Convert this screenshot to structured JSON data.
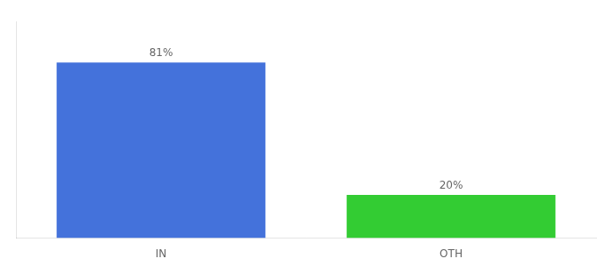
{
  "chart_data": {
    "type": "bar",
    "categories": [
      "IN",
      "OTH"
    ],
    "values": [
      81,
      20
    ],
    "value_labels": [
      "81%",
      "20%"
    ],
    "data_labels": true,
    "colors": [
      "#4472db",
      "#33cc33"
    ],
    "ylim": [
      0,
      100
    ],
    "tick_labels": "x",
    "grid": false
  }
}
